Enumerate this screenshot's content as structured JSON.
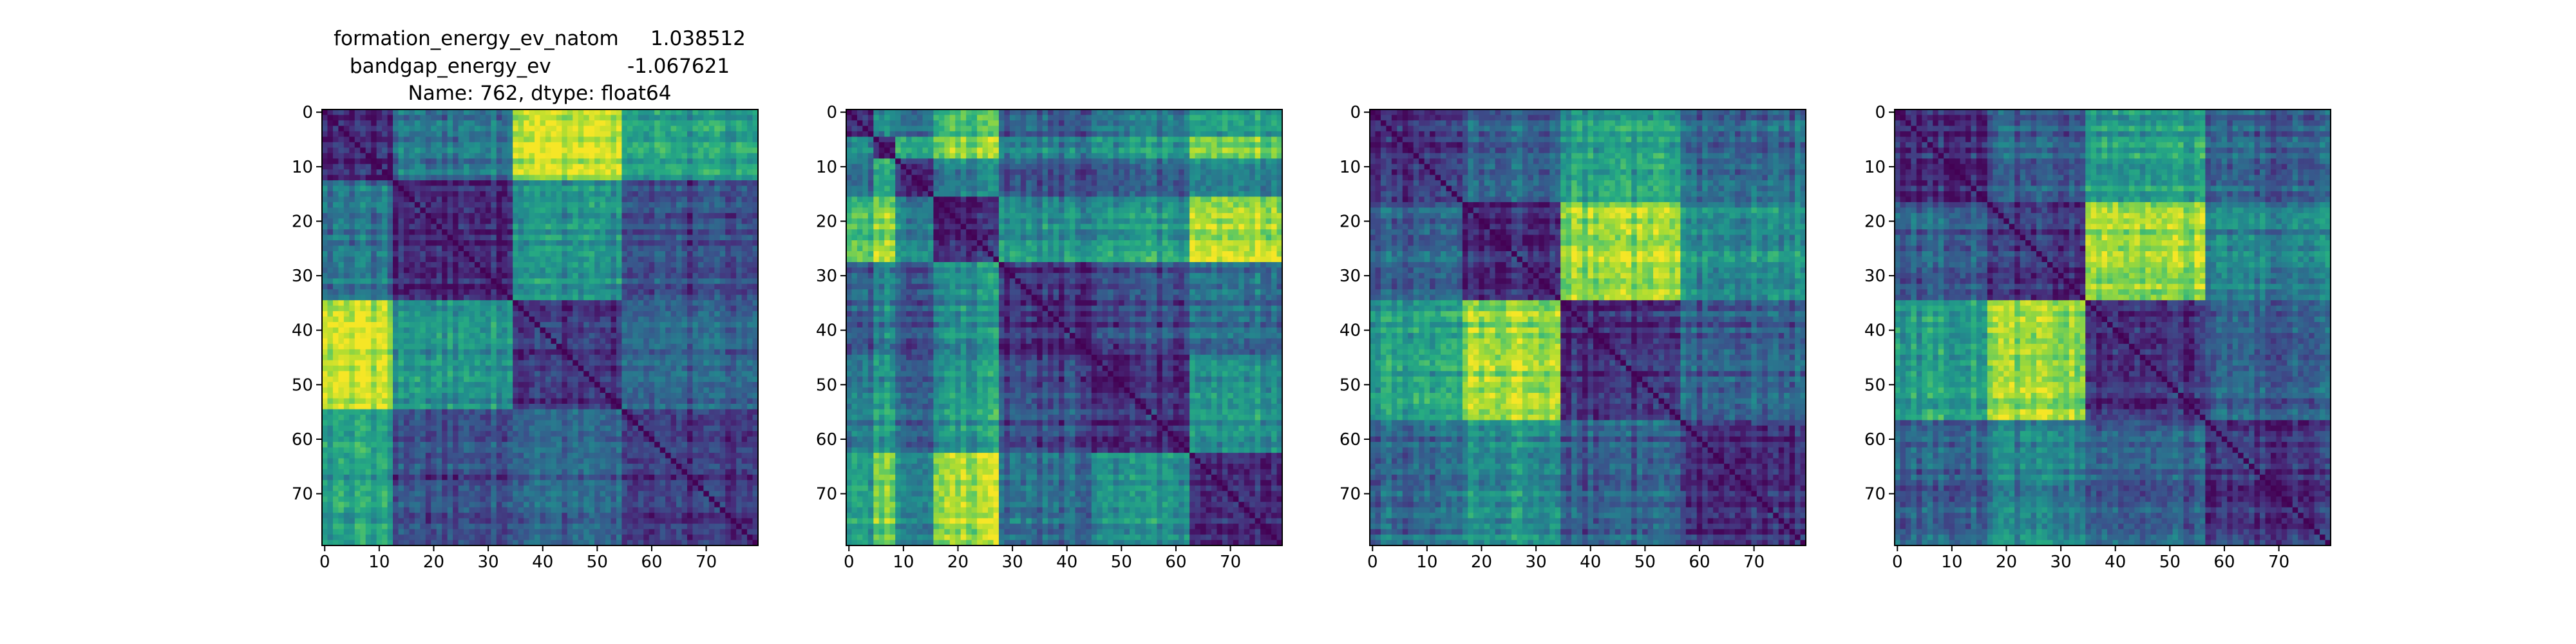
{
  "figure": {
    "title_lines": [
      "formation_energy_ev_natom     1.038512",
      "bandgap_energy_ev            -1.067621",
      "Name: 762, dtype: float64"
    ]
  },
  "chart_data": [
    {
      "type": "heatmap",
      "title": "",
      "xlabel": "",
      "ylabel": "",
      "n": 80,
      "colormap": "viridis",
      "xlim": [
        0,
        79
      ],
      "ylim": [
        79,
        0
      ],
      "xticks": [
        0,
        10,
        20,
        30,
        40,
        50,
        60,
        70
      ],
      "yticks": [
        0,
        10,
        20,
        30,
        40,
        50,
        60,
        70
      ],
      "grid": false,
      "groups": [
        {
          "start": 0,
          "end": 12
        },
        {
          "start": 13,
          "end": 34
        },
        {
          "start": 35,
          "end": 54
        },
        {
          "start": 55,
          "end": 79
        }
      ],
      "block_levels": [
        [
          0.12,
          0.4,
          0.92,
          0.55
        ],
        [
          0.4,
          0.12,
          0.52,
          0.22
        ],
        [
          0.92,
          0.52,
          0.14,
          0.3
        ],
        [
          0.55,
          0.22,
          0.3,
          0.12
        ]
      ]
    },
    {
      "type": "heatmap",
      "title": "",
      "xlabel": "",
      "ylabel": "",
      "n": 80,
      "colormap": "viridis",
      "xlim": [
        0,
        79
      ],
      "ylim": [
        79,
        0
      ],
      "xticks": [
        0,
        10,
        20,
        30,
        40,
        50,
        60,
        70
      ],
      "yticks": [
        0,
        10,
        20,
        30,
        40,
        50,
        60,
        70
      ],
      "grid": false,
      "groups": [
        {
          "start": 0,
          "end": 4
        },
        {
          "start": 5,
          "end": 8
        },
        {
          "start": 9,
          "end": 15
        },
        {
          "start": 16,
          "end": 27
        },
        {
          "start": 28,
          "end": 44
        },
        {
          "start": 45,
          "end": 62
        },
        {
          "start": 63,
          "end": 79
        }
      ],
      "block_levels": [
        [
          0.12,
          0.5,
          0.35,
          0.7,
          0.28,
          0.4,
          0.55
        ],
        [
          0.5,
          0.15,
          0.6,
          0.85,
          0.45,
          0.55,
          0.8
        ],
        [
          0.35,
          0.6,
          0.12,
          0.45,
          0.25,
          0.3,
          0.45
        ],
        [
          0.7,
          0.85,
          0.45,
          0.12,
          0.5,
          0.55,
          0.88
        ],
        [
          0.28,
          0.45,
          0.25,
          0.5,
          0.12,
          0.22,
          0.35
        ],
        [
          0.4,
          0.55,
          0.3,
          0.55,
          0.22,
          0.12,
          0.5
        ],
        [
          0.55,
          0.8,
          0.45,
          0.88,
          0.35,
          0.5,
          0.12
        ]
      ]
    },
    {
      "type": "heatmap",
      "title": "",
      "xlabel": "",
      "ylabel": "",
      "n": 80,
      "colormap": "viridis",
      "xlim": [
        0,
        79
      ],
      "ylim": [
        79,
        0
      ],
      "xticks": [
        0,
        10,
        20,
        30,
        40,
        50,
        60,
        70
      ],
      "yticks": [
        0,
        10,
        20,
        30,
        40,
        50,
        60,
        70
      ],
      "grid": false,
      "groups": [
        {
          "start": 0,
          "end": 16
        },
        {
          "start": 17,
          "end": 34
        },
        {
          "start": 35,
          "end": 56
        },
        {
          "start": 57,
          "end": 79
        }
      ],
      "block_levels": [
        [
          0.12,
          0.3,
          0.55,
          0.32
        ],
        [
          0.3,
          0.12,
          0.85,
          0.48
        ],
        [
          0.55,
          0.85,
          0.12,
          0.3
        ],
        [
          0.32,
          0.48,
          0.3,
          0.12
        ]
      ]
    },
    {
      "type": "heatmap",
      "title": "",
      "xlabel": "",
      "ylabel": "",
      "n": 80,
      "colormap": "viridis",
      "xlim": [
        0,
        79
      ],
      "ylim": [
        79,
        0
      ],
      "xticks": [
        0,
        10,
        20,
        30,
        40,
        50,
        60,
        70
      ],
      "yticks": [
        0,
        10,
        20,
        30,
        40,
        50,
        60,
        70
      ],
      "grid": false,
      "groups": [
        {
          "start": 0,
          "end": 16
        },
        {
          "start": 17,
          "end": 34
        },
        {
          "start": 35,
          "end": 56
        },
        {
          "start": 57,
          "end": 79
        }
      ],
      "block_levels": [
        [
          0.12,
          0.28,
          0.55,
          0.3
        ],
        [
          0.28,
          0.12,
          0.82,
          0.42
        ],
        [
          0.55,
          0.82,
          0.12,
          0.28
        ],
        [
          0.3,
          0.42,
          0.28,
          0.12
        ]
      ]
    }
  ]
}
